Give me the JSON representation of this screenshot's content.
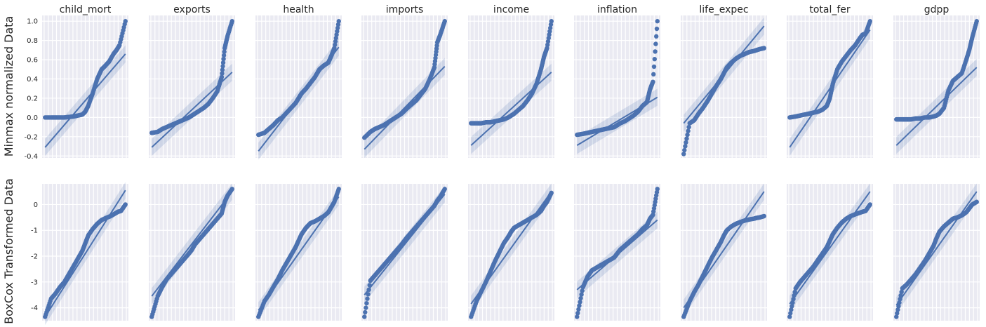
{
  "chart_data": {
    "type": "scatter",
    "columns": [
      "child_mort",
      "exports",
      "health",
      "imports",
      "income",
      "inflation",
      "life_expec",
      "total_fer",
      "gdpp"
    ],
    "rows": [
      {
        "ylabel": "Minmax normalized Data",
        "yticks": [
          1.0,
          0.8,
          0.6,
          0.4,
          0.2,
          0.0,
          -0.2,
          -0.4
        ],
        "ylim": [
          -0.42,
          1.06
        ],
        "xlim": [
          -2.9,
          2.9
        ],
        "panels": [
          {
            "name": "child_mort",
            "q": [
              -2.7,
              -2.3,
              -2.0,
              -1.7,
              -1.4,
              -1.1,
              -0.8,
              -0.5,
              -0.2,
              0,
              0.2,
              0.5,
              0.8,
              1.1,
              1.3,
              1.6,
              1.9,
              2.1,
              2.3,
              2.7
            ],
            "v": [
              0.0,
              0.0,
              0.0,
              0.0,
              0.0,
              0.005,
              0.01,
              0.02,
              0.03,
              0.06,
              0.12,
              0.25,
              0.4,
              0.5,
              0.53,
              0.58,
              0.66,
              0.7,
              0.75,
              1.0
            ],
            "fit": [
              -0.31,
              0.66
            ]
          },
          {
            "name": "exports",
            "q": [
              -2.7,
              -2.3,
              -2.0,
              -1.7,
              -1.4,
              -1.1,
              -0.8,
              -0.5,
              -0.2,
              0,
              0.2,
              0.5,
              0.8,
              1.1,
              1.4,
              1.7,
              2.0,
              2.2,
              2.4,
              2.7
            ],
            "v": [
              -0.16,
              -0.15,
              -0.12,
              -0.1,
              -0.08,
              -0.06,
              -0.04,
              -0.02,
              0.0,
              0.02,
              0.04,
              0.07,
              0.1,
              0.14,
              0.2,
              0.27,
              0.42,
              0.72,
              0.85,
              1.0
            ],
            "fit": [
              -0.31,
              0.47
            ]
          },
          {
            "name": "health",
            "q": [
              -2.7,
              -2.3,
              -2.0,
              -1.7,
              -1.4,
              -1.1,
              -0.8,
              -0.5,
              -0.2,
              0,
              0.2,
              0.5,
              0.8,
              1.1,
              1.4,
              1.7,
              2.0,
              2.2,
              2.4,
              2.7
            ],
            "v": [
              -0.18,
              -0.16,
              -0.12,
              -0.08,
              -0.03,
              0.0,
              0.05,
              0.1,
              0.15,
              0.2,
              0.25,
              0.3,
              0.36,
              0.42,
              0.5,
              0.54,
              0.57,
              0.64,
              0.72,
              1.0
            ],
            "fit": [
              -0.35,
              0.73
            ]
          },
          {
            "name": "imports",
            "q": [
              -2.7,
              -2.3,
              -2.0,
              -1.7,
              -1.4,
              -1.1,
              -0.8,
              -0.5,
              -0.2,
              0,
              0.2,
              0.5,
              0.8,
              1.1,
              1.4,
              1.7,
              2.0,
              2.2,
              2.4,
              2.7
            ],
            "v": [
              -0.21,
              -0.15,
              -0.12,
              -0.1,
              -0.08,
              -0.05,
              -0.02,
              0.01,
              0.04,
              0.07,
              0.1,
              0.14,
              0.18,
              0.24,
              0.3,
              0.4,
              0.52,
              0.78,
              0.86,
              1.0
            ],
            "fit": [
              -0.33,
              0.53
            ]
          },
          {
            "name": "income",
            "q": [
              -2.7,
              -2.3,
              -2.0,
              -1.7,
              -1.4,
              -1.1,
              -0.8,
              -0.5,
              -0.2,
              0,
              0.2,
              0.5,
              0.8,
              1.1,
              1.4,
              1.7,
              2.0,
              2.2,
              2.4,
              2.7
            ],
            "v": [
              -0.06,
              -0.06,
              -0.06,
              -0.05,
              -0.05,
              -0.04,
              -0.03,
              -0.02,
              0.0,
              0.02,
              0.04,
              0.08,
              0.12,
              0.18,
              0.25,
              0.35,
              0.5,
              0.63,
              0.72,
              1.0
            ],
            "fit": [
              -0.29,
              0.47
            ]
          },
          {
            "name": "inflation",
            "q": [
              -2.7,
              -2.3,
              -2.0,
              -1.7,
              -1.4,
              -1.1,
              -0.8,
              -0.5,
              -0.2,
              0,
              0.2,
              0.5,
              0.8,
              1.1,
              1.4,
              1.7,
              2.0,
              2.2,
              2.4,
              2.7
            ],
            "v": [
              -0.18,
              -0.17,
              -0.16,
              -0.15,
              -0.14,
              -0.13,
              -0.12,
              -0.11,
              -0.1,
              -0.08,
              -0.06,
              -0.04,
              -0.01,
              0.02,
              0.06,
              0.12,
              0.16,
              0.29,
              0.37,
              1.0
            ],
            "fit": [
              -0.29,
              0.21
            ]
          },
          {
            "name": "life_expec",
            "q": [
              -2.7,
              -2.3,
              -2.0,
              -1.7,
              -1.4,
              -1.1,
              -0.8,
              -0.5,
              -0.2,
              0,
              0.2,
              0.5,
              0.8,
              1.1,
              1.4,
              1.7,
              2.0,
              2.2,
              2.4,
              2.7
            ],
            "v": [
              -0.38,
              -0.06,
              -0.03,
              0.04,
              0.1,
              0.17,
              0.25,
              0.33,
              0.4,
              0.46,
              0.52,
              0.57,
              0.61,
              0.64,
              0.66,
              0.68,
              0.69,
              0.7,
              0.71,
              0.72
            ],
            "fit": [
              -0.06,
              0.95
            ]
          },
          {
            "name": "total_fer",
            "q": [
              -2.7,
              -2.3,
              -2.0,
              -1.7,
              -1.4,
              -1.1,
              -0.8,
              -0.5,
              -0.2,
              0,
              0.2,
              0.5,
              0.8,
              1.1,
              1.4,
              1.7,
              2.0,
              2.2,
              2.4,
              2.7
            ],
            "v": [
              0.0,
              0.01,
              0.02,
              0.03,
              0.04,
              0.05,
              0.06,
              0.08,
              0.12,
              0.2,
              0.35,
              0.5,
              0.58,
              0.64,
              0.7,
              0.75,
              0.82,
              0.86,
              0.87,
              1.0
            ],
            "fit": [
              -0.31,
              0.91
            ]
          },
          {
            "name": "gdpp",
            "q": [
              -2.7,
              -2.3,
              -2.0,
              -1.7,
              -1.4,
              -1.1,
              -0.8,
              -0.5,
              -0.2,
              0,
              0.2,
              0.5,
              0.8,
              1.1,
              1.4,
              1.7,
              2.0,
              2.2,
              2.4,
              2.7
            ],
            "v": [
              -0.02,
              -0.02,
              -0.02,
              -0.02,
              -0.01,
              -0.01,
              0.0,
              0.0,
              0.01,
              0.02,
              0.04,
              0.1,
              0.28,
              0.38,
              0.42,
              0.46,
              0.6,
              0.7,
              0.83,
              1.0
            ],
            "fit": [
              -0.29,
              0.52
            ]
          }
        ]
      },
      {
        "ylabel": "BoxCox Transformed Data",
        "yticks": [
          0,
          -1,
          -2,
          -3,
          -4
        ],
        "ylim": [
          -4.5,
          0.8
        ],
        "xlim": [
          -2.9,
          2.9
        ],
        "panels": [
          {
            "name": "child_mort",
            "q": [
              -2.7,
              -2.3,
              -2.0,
              -1.7,
              -1.4,
              -1.1,
              -0.8,
              -0.5,
              -0.2,
              0,
              0.2,
              0.5,
              0.8,
              1.1,
              1.4,
              1.7,
              2.0,
              2.2,
              2.4,
              2.7
            ],
            "v": [
              -4.35,
              -3.65,
              -3.45,
              -3.2,
              -3.0,
              -2.7,
              -2.4,
              -2.1,
              -1.8,
              -1.5,
              -1.2,
              -0.95,
              -0.75,
              -0.6,
              -0.52,
              -0.45,
              -0.35,
              -0.28,
              -0.25,
              0.0
            ],
            "fit": [
              -4.35,
              0.55
            ]
          },
          {
            "name": "exports",
            "q": [
              -2.7,
              -2.3,
              -2.0,
              -1.7,
              -1.4,
              -1.1,
              -0.8,
              -0.5,
              -0.2,
              0,
              0.2,
              0.5,
              0.8,
              1.1,
              1.4,
              1.7,
              2.0,
              2.2,
              2.4,
              2.7
            ],
            "v": [
              -4.35,
              -3.55,
              -3.2,
              -2.9,
              -2.7,
              -2.5,
              -2.3,
              -2.1,
              -1.9,
              -1.75,
              -1.55,
              -1.35,
              -1.15,
              -0.95,
              -0.75,
              -0.55,
              -0.35,
              0.1,
              0.35,
              0.6
            ],
            "fit": [
              -3.55,
              0.5
            ]
          },
          {
            "name": "health",
            "q": [
              -2.7,
              -2.3,
              -2.0,
              -1.7,
              -1.4,
              -1.1,
              -0.8,
              -0.5,
              -0.2,
              0,
              0.2,
              0.5,
              0.8,
              1.1,
              1.4,
              1.7,
              2.0,
              2.2,
              2.4,
              2.7
            ],
            "v": [
              -4.35,
              -3.75,
              -3.5,
              -3.2,
              -2.9,
              -2.55,
              -2.25,
              -1.95,
              -1.65,
              -1.4,
              -1.15,
              -0.9,
              -0.72,
              -0.65,
              -0.55,
              -0.45,
              -0.3,
              -0.1,
              0.1,
              0.6
            ],
            "fit": [
              -4.1,
              0.3
            ]
          },
          {
            "name": "imports",
            "q": [
              -2.7,
              -2.3,
              -2.0,
              -1.7,
              -1.4,
              -1.1,
              -0.8,
              -0.5,
              -0.2,
              0,
              0.2,
              0.5,
              0.8,
              1.1,
              1.4,
              1.7,
              2.0,
              2.2,
              2.4,
              2.7
            ],
            "v": [
              -4.35,
              -2.95,
              -2.75,
              -2.55,
              -2.35,
              -2.15,
              -1.95,
              -1.75,
              -1.55,
              -1.4,
              -1.25,
              -1.05,
              -0.85,
              -0.65,
              -0.45,
              -0.25,
              -0.05,
              0.15,
              0.3,
              0.6
            ],
            "fit": [
              -3.5,
              0.4
            ]
          },
          {
            "name": "income",
            "q": [
              -2.7,
              -2.3,
              -2.0,
              -1.7,
              -1.4,
              -1.1,
              -0.8,
              -0.5,
              -0.2,
              0,
              0.2,
              0.5,
              0.8,
              1.1,
              1.4,
              1.7,
              2.0,
              2.2,
              2.4,
              2.7
            ],
            "v": [
              -4.35,
              -3.7,
              -3.35,
              -3.0,
              -2.6,
              -2.2,
              -1.85,
              -1.5,
              -1.25,
              -1.05,
              -0.9,
              -0.8,
              -0.7,
              -0.6,
              -0.5,
              -0.4,
              -0.25,
              -0.05,
              0.1,
              0.45
            ],
            "fit": [
              -3.85,
              0.5
            ]
          },
          {
            "name": "inflation",
            "q": [
              -2.7,
              -2.3,
              -2.0,
              -1.7,
              -1.4,
              -1.1,
              -0.8,
              -0.5,
              -0.2,
              0,
              0.2,
              0.5,
              0.8,
              1.1,
              1.4,
              1.7,
              2.0,
              2.2,
              2.4,
              2.7
            ],
            "v": [
              -4.35,
              -3.2,
              -2.8,
              -2.55,
              -2.45,
              -2.35,
              -2.25,
              -2.15,
              -2.05,
              -1.9,
              -1.75,
              -1.6,
              -1.45,
              -1.3,
              -1.15,
              -0.95,
              -0.8,
              -0.55,
              -0.4,
              0.6
            ],
            "fit": [
              -3.3,
              -0.6
            ]
          },
          {
            "name": "life_expec",
            "q": [
              -2.7,
              -2.3,
              -2.0,
              -1.7,
              -1.4,
              -1.1,
              -0.8,
              -0.5,
              -0.2,
              0,
              0.2,
              0.5,
              0.8,
              1.1,
              1.4,
              1.7,
              2.0,
              2.2,
              2.4,
              2.7
            ],
            "v": [
              -4.35,
              -3.75,
              -3.4,
              -3.1,
              -2.75,
              -2.4,
              -2.05,
              -1.75,
              -1.45,
              -1.2,
              -1.0,
              -0.85,
              -0.75,
              -0.68,
              -0.62,
              -0.58,
              -0.55,
              -0.52,
              -0.5,
              -0.45
            ],
            "fit": [
              -4.0,
              0.5
            ]
          },
          {
            "name": "total_fer",
            "q": [
              -2.7,
              -2.3,
              -2.0,
              -1.7,
              -1.4,
              -1.1,
              -0.8,
              -0.5,
              -0.2,
              0,
              0.2,
              0.5,
              0.8,
              1.1,
              1.4,
              1.7,
              2.0,
              2.2,
              2.4,
              2.7
            ],
            "v": [
              -4.35,
              -3.25,
              -3.0,
              -2.8,
              -2.6,
              -2.4,
              -2.15,
              -1.9,
              -1.65,
              -1.4,
              -1.15,
              -0.9,
              -0.7,
              -0.55,
              -0.45,
              -0.38,
              -0.32,
              -0.28,
              -0.25,
              0.0
            ],
            "fit": [
              -3.85,
              0.5
            ]
          },
          {
            "name": "gdpp",
            "q": [
              -2.7,
              -2.3,
              -2.0,
              -1.7,
              -1.4,
              -1.1,
              -0.8,
              -0.5,
              -0.2,
              0,
              0.2,
              0.5,
              0.8,
              1.1,
              1.4,
              1.7,
              2.0,
              2.2,
              2.4,
              2.7
            ],
            "v": [
              -4.35,
              -3.25,
              -3.1,
              -2.9,
              -2.7,
              -2.45,
              -2.2,
              -1.9,
              -1.6,
              -1.3,
              -1.05,
              -0.85,
              -0.7,
              -0.55,
              -0.5,
              -0.42,
              -0.3,
              -0.15,
              0.0,
              0.1
            ],
            "fit": [
              -3.9,
              0.5
            ]
          }
        ]
      }
    ]
  }
}
